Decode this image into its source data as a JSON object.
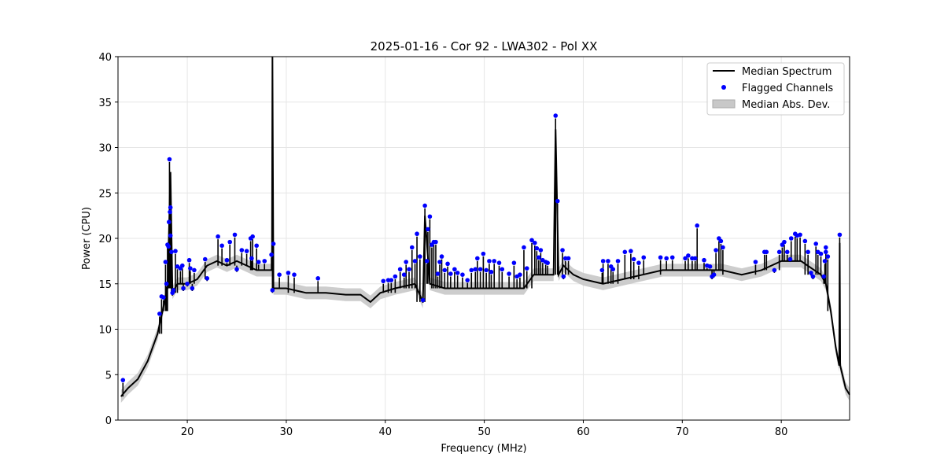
{
  "chart_data": {
    "type": "line",
    "title": "2025-01-16 - Cor 92 - LWA302 - Pol XX",
    "xlabel": "Frequency (MHz)",
    "ylabel": "Power (CPU)",
    "xlim": [
      13.0,
      86.9
    ],
    "ylim": [
      0,
      40
    ],
    "xticks": [
      20,
      30,
      40,
      50,
      60,
      70,
      80
    ],
    "yticks": [
      0,
      5,
      10,
      15,
      20,
      25,
      30,
      35,
      40
    ],
    "grid": true,
    "legend_position": "top-right",
    "legend": [
      "Median Spectrum",
      "Flagged Channels",
      "Median Abs. Dev."
    ],
    "colors": {
      "median": "#000000",
      "flagged": "#0000ff",
      "mad": "#bbbbbb"
    },
    "mad_halfwidth": 0.7,
    "median_spectrum": [
      [
        13.3,
        2.6
      ],
      [
        14,
        3.5
      ],
      [
        15,
        4.5
      ],
      [
        16,
        6.5
      ],
      [
        17,
        9.5
      ],
      [
        17.5,
        12
      ],
      [
        18,
        14.5
      ],
      [
        18.3,
        27.3
      ],
      [
        18.5,
        14
      ],
      [
        19,
        15
      ],
      [
        20,
        15
      ],
      [
        21,
        15.5
      ],
      [
        22,
        17
      ],
      [
        23,
        17.5
      ],
      [
        24,
        17
      ],
      [
        25,
        17.5
      ],
      [
        26,
        17
      ],
      [
        27,
        16.5
      ],
      [
        28,
        16.5
      ],
      [
        28.55,
        16.5
      ],
      [
        28.6,
        40
      ],
      [
        28.7,
        14.5
      ],
      [
        30,
        14.5
      ],
      [
        32,
        14
      ],
      [
        34,
        14
      ],
      [
        36,
        13.8
      ],
      [
        37.5,
        13.8
      ],
      [
        38.5,
        13
      ],
      [
        39.5,
        14
      ],
      [
        41,
        14.5
      ],
      [
        43,
        15
      ],
      [
        43.8,
        13
      ],
      [
        44,
        22.5
      ],
      [
        44.5,
        15
      ],
      [
        46,
        14.5
      ],
      [
        48,
        14.5
      ],
      [
        50,
        14.5
      ],
      [
        52,
        14.5
      ],
      [
        54,
        14.5
      ],
      [
        55,
        16
      ],
      [
        57,
        16
      ],
      [
        57.2,
        32
      ],
      [
        57.5,
        16
      ],
      [
        58,
        17
      ],
      [
        59,
        16
      ],
      [
        60,
        15.5
      ],
      [
        62,
        15
      ],
      [
        64,
        15.5
      ],
      [
        66,
        16
      ],
      [
        68,
        16.5
      ],
      [
        70,
        16.5
      ],
      [
        72,
        16.5
      ],
      [
        74,
        16.5
      ],
      [
        76,
        16
      ],
      [
        78,
        16.5
      ],
      [
        80,
        17.5
      ],
      [
        82,
        17.5
      ],
      [
        84,
        16
      ],
      [
        84.5,
        15
      ],
      [
        85,
        12
      ],
      [
        85.5,
        8
      ],
      [
        85.85,
        6
      ],
      [
        85.9,
        19.5
      ],
      [
        85.95,
        6
      ],
      [
        86.5,
        3.5
      ],
      [
        86.9,
        2.8
      ]
    ],
    "flagged_channels": [
      [
        13.5,
        4.4
      ],
      [
        17.2,
        11.7
      ],
      [
        17.4,
        13.6
      ],
      [
        17.6,
        13.5
      ],
      [
        17.8,
        17.4
      ],
      [
        17.9,
        15
      ],
      [
        18.0,
        19.3
      ],
      [
        18.1,
        19.1
      ],
      [
        18.15,
        21.8
      ],
      [
        18.2,
        28.7
      ],
      [
        18.25,
        22.9
      ],
      [
        18.3,
        23.4
      ],
      [
        18.3,
        20.3
      ],
      [
        18.4,
        18.5
      ],
      [
        18.5,
        14
      ],
      [
        18.6,
        14.3
      ],
      [
        18.8,
        18.6
      ],
      [
        19,
        16.9
      ],
      [
        19.3,
        16.7
      ],
      [
        19.5,
        17
      ],
      [
        19.6,
        14.5
      ],
      [
        20,
        15
      ],
      [
        20.2,
        17.6
      ],
      [
        20.3,
        16.7
      ],
      [
        20.5,
        14.5
      ],
      [
        20.7,
        16.5
      ],
      [
        21.8,
        17.7
      ],
      [
        22,
        15.6
      ],
      [
        23.1,
        20.2
      ],
      [
        23.5,
        19.2
      ],
      [
        24,
        17.6
      ],
      [
        24.3,
        19.6
      ],
      [
        24.8,
        20.4
      ],
      [
        25,
        16.6
      ],
      [
        25.5,
        18.7
      ],
      [
        26,
        18.6
      ],
      [
        26.4,
        20
      ],
      [
        26.6,
        20.2
      ],
      [
        26.5,
        17.8
      ],
      [
        27,
        19.2
      ],
      [
        27.2,
        17.4
      ],
      [
        27.8,
        17.5
      ],
      [
        28.5,
        18.2
      ],
      [
        28.7,
        19.4
      ],
      [
        28.6,
        14.3
      ],
      [
        29.3,
        16
      ],
      [
        30.2,
        16.2
      ],
      [
        30.8,
        16
      ],
      [
        33.2,
        15.6
      ],
      [
        39.8,
        15.3
      ],
      [
        40.3,
        15.4
      ],
      [
        40.6,
        15.4
      ],
      [
        41,
        15.8
      ],
      [
        41.5,
        16.6
      ],
      [
        41.9,
        16
      ],
      [
        42.1,
        17.4
      ],
      [
        42.4,
        16.6
      ],
      [
        42.7,
        19
      ],
      [
        43,
        17.5
      ],
      [
        43.2,
        20.5
      ],
      [
        43.5,
        18
      ],
      [
        43.8,
        13.2
      ],
      [
        44,
        23.6
      ],
      [
        44.2,
        17.5
      ],
      [
        44.3,
        21
      ],
      [
        44.5,
        22.4
      ],
      [
        44.7,
        19.3
      ],
      [
        44.9,
        19.6
      ],
      [
        45.1,
        19.6
      ],
      [
        45.3,
        16.1
      ],
      [
        45.5,
        17.4
      ],
      [
        45.7,
        18
      ],
      [
        46,
        16.5
      ],
      [
        46.3,
        17.2
      ],
      [
        46.6,
        16.1
      ],
      [
        47,
        16.6
      ],
      [
        47.3,
        16.2
      ],
      [
        47.8,
        16
      ],
      [
        48.3,
        15.4
      ],
      [
        48.7,
        16.5
      ],
      [
        49.1,
        16.6
      ],
      [
        49.3,
        17.8
      ],
      [
        49.6,
        16.6
      ],
      [
        49.9,
        18.3
      ],
      [
        50.2,
        16.5
      ],
      [
        50.5,
        17.5
      ],
      [
        50.7,
        16.3
      ],
      [
        51,
        17.5
      ],
      [
        51.5,
        17.3
      ],
      [
        51.8,
        16.6
      ],
      [
        52.5,
        16.1
      ],
      [
        53,
        17.3
      ],
      [
        53.3,
        15.8
      ],
      [
        53.6,
        16
      ],
      [
        54,
        19
      ],
      [
        54.3,
        16.7
      ],
      [
        54.8,
        19.8
      ],
      [
        55.1,
        19.5
      ],
      [
        55.3,
        18.9
      ],
      [
        55.5,
        17.9
      ],
      [
        55.7,
        18.7
      ],
      [
        55.9,
        17.6
      ],
      [
        56.2,
        17.4
      ],
      [
        56.4,
        17.3
      ],
      [
        57.2,
        33.5
      ],
      [
        57.4,
        24.1
      ],
      [
        57.9,
        18.7
      ],
      [
        58.2,
        17.8
      ],
      [
        58.5,
        17.8
      ],
      [
        58,
        15.8
      ],
      [
        61.9,
        16.5
      ],
      [
        62,
        17.5
      ],
      [
        62.5,
        17.5
      ],
      [
        62.8,
        16.9
      ],
      [
        63,
        16.6
      ],
      [
        63.5,
        17.5
      ],
      [
        64.2,
        18.5
      ],
      [
        64.8,
        18.6
      ],
      [
        65.1,
        17.7
      ],
      [
        65.6,
        17.3
      ],
      [
        66.1,
        17.9
      ],
      [
        67.8,
        17.9
      ],
      [
        68.4,
        17.8
      ],
      [
        69,
        17.9
      ],
      [
        70.3,
        17.8
      ],
      [
        70.6,
        18.1
      ],
      [
        71,
        17.8
      ],
      [
        71.5,
        21.4
      ],
      [
        71.3,
        17.8
      ],
      [
        72.2,
        17.6
      ],
      [
        72.5,
        17
      ],
      [
        72.8,
        16.9
      ],
      [
        73.2,
        16
      ],
      [
        73.4,
        18.7
      ],
      [
        73.7,
        20
      ],
      [
        73.9,
        19.7
      ],
      [
        74.1,
        19
      ],
      [
        73,
        15.8
      ],
      [
        77.4,
        17.4
      ],
      [
        78.3,
        18.5
      ],
      [
        78.5,
        18.5
      ],
      [
        79.3,
        16.5
      ],
      [
        79.8,
        18.5
      ],
      [
        80.1,
        19.3
      ],
      [
        80.3,
        19.6
      ],
      [
        80.6,
        18.5
      ],
      [
        80.9,
        17.7
      ],
      [
        81,
        20
      ],
      [
        81.4,
        20.5
      ],
      [
        81.6,
        20.3
      ],
      [
        81.9,
        20.4
      ],
      [
        82.4,
        19.7
      ],
      [
        82.7,
        18.5
      ],
      [
        83,
        16.2
      ],
      [
        83.2,
        15.8
      ],
      [
        83.5,
        19.4
      ],
      [
        83.7,
        18.5
      ],
      [
        84,
        18.3
      ],
      [
        84.3,
        15.8
      ],
      [
        84.4,
        17.5
      ],
      [
        84.5,
        18.5
      ],
      [
        84.5,
        19
      ],
      [
        84.7,
        18
      ],
      [
        85.9,
        20.4
      ]
    ]
  }
}
